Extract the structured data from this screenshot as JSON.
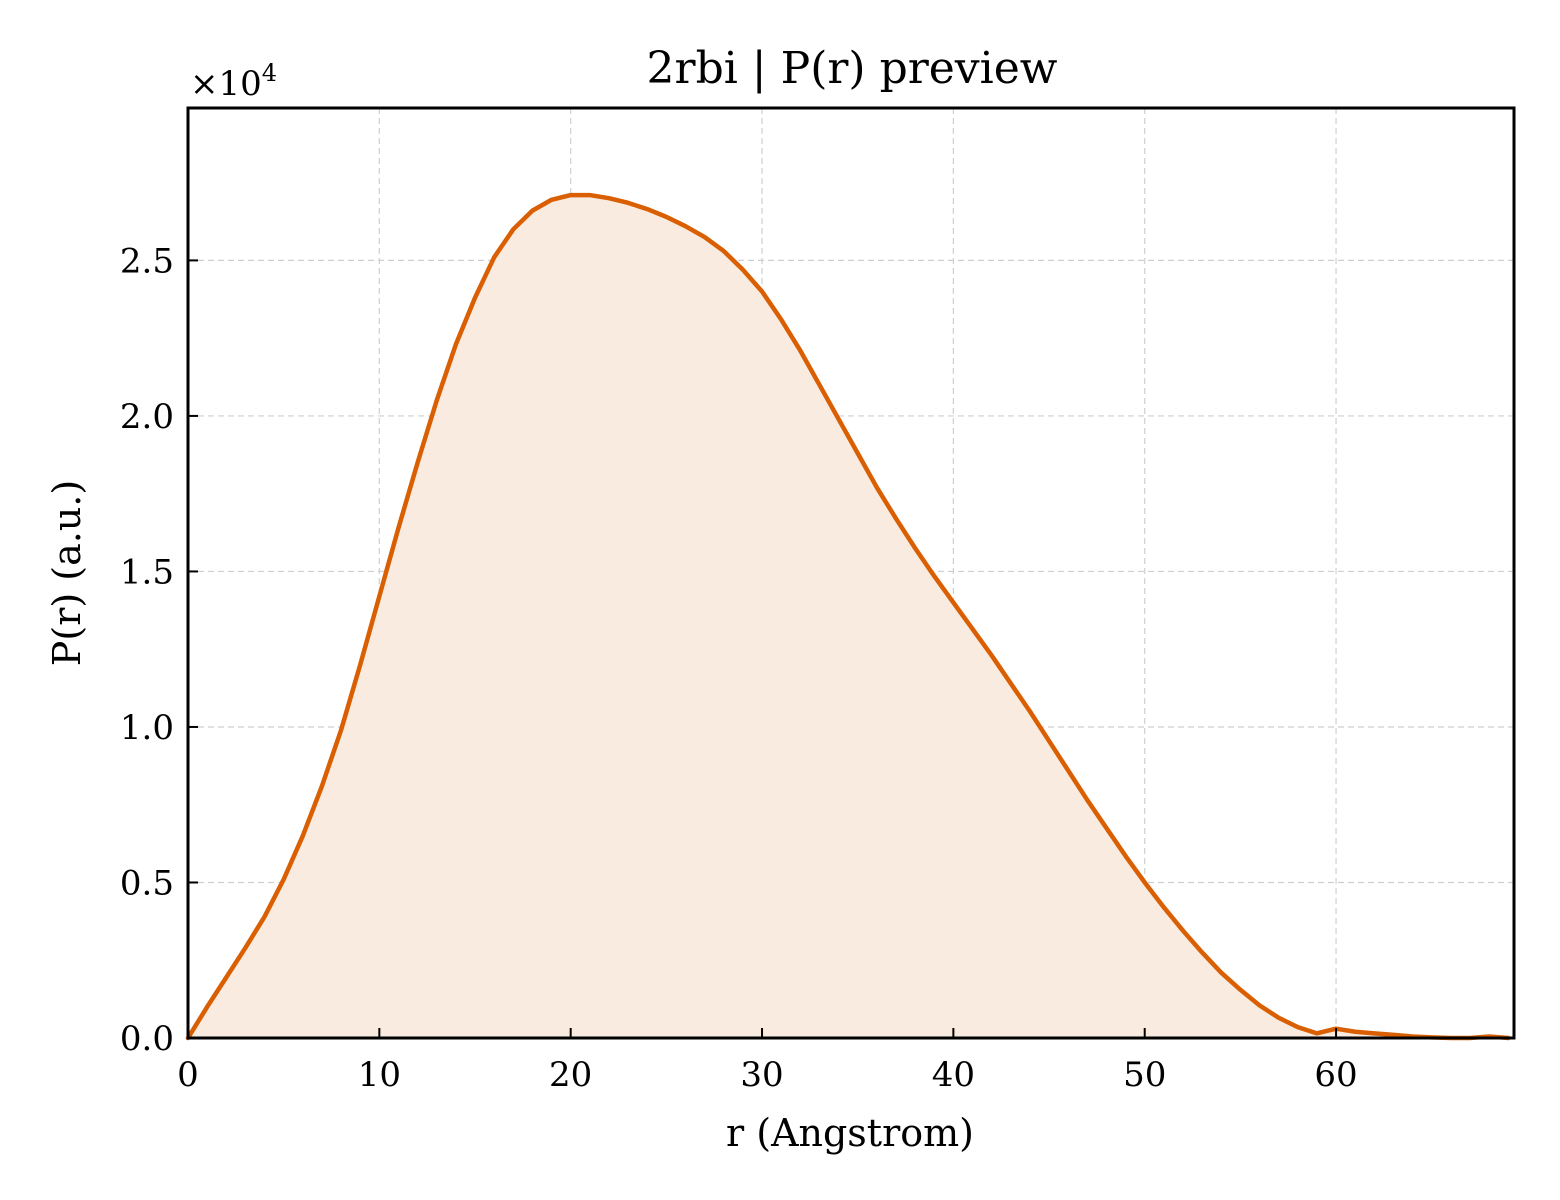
{
  "chart_data": {
    "type": "area",
    "title": "2rbi | P(r) preview",
    "xlabel": "r (Angstrom)",
    "ylabel": "P(r) (a.u.)",
    "y_multiplier_label": "×10",
    "y_multiplier_exponent": "4",
    "xlim": [
      0,
      69.3
    ],
    "ylim": [
      0,
      29900
    ],
    "x_ticks": [
      0,
      10,
      20,
      30,
      40,
      50,
      60
    ],
    "x_tick_labels": [
      "0",
      "10",
      "20",
      "30",
      "40",
      "50",
      "60"
    ],
    "y_ticks": [
      0,
      5000,
      10000,
      15000,
      20000,
      25000
    ],
    "y_tick_labels": [
      "0.0",
      "0.5",
      "1.0",
      "1.5",
      "2.0",
      "2.5"
    ],
    "grid": true,
    "legend": "none",
    "line_color": "#d95f02",
    "fill_color": "#f9ebe0",
    "series": [
      {
        "x": [
          0,
          1,
          2,
          3,
          4,
          5,
          6,
          7,
          8,
          9,
          10,
          11,
          12,
          13,
          14,
          15,
          16,
          17,
          18,
          19,
          20,
          21,
          22,
          23,
          24,
          25,
          26,
          27,
          28,
          29,
          30,
          31,
          32,
          33,
          34,
          35,
          36,
          37,
          38,
          39,
          40,
          41,
          42,
          43,
          44,
          45,
          46,
          47,
          48,
          49,
          50,
          51,
          52,
          53,
          54,
          55,
          56,
          57,
          58,
          59,
          60,
          61,
          62,
          63,
          64,
          65,
          66,
          67,
          68,
          69
        ],
        "values": [
          0,
          1000,
          1950,
          2900,
          3900,
          5100,
          6500,
          8100,
          9900,
          12000,
          14200,
          16400,
          18500,
          20500,
          22300,
          23800,
          25100,
          26000,
          26600,
          26950,
          27100,
          27100,
          27000,
          26850,
          26650,
          26400,
          26100,
          25750,
          25300,
          24700,
          24000,
          23100,
          22100,
          21000,
          19900,
          18800,
          17700,
          16700,
          15750,
          14850,
          14000,
          13150,
          12300,
          11400,
          10500,
          9550,
          8600,
          7650,
          6750,
          5850,
          5000,
          4200,
          3450,
          2750,
          2100,
          1550,
          1050,
          650,
          350,
          150,
          300,
          200,
          150,
          100,
          50,
          20,
          0,
          0,
          50,
          0
        ]
      }
    ]
  }
}
